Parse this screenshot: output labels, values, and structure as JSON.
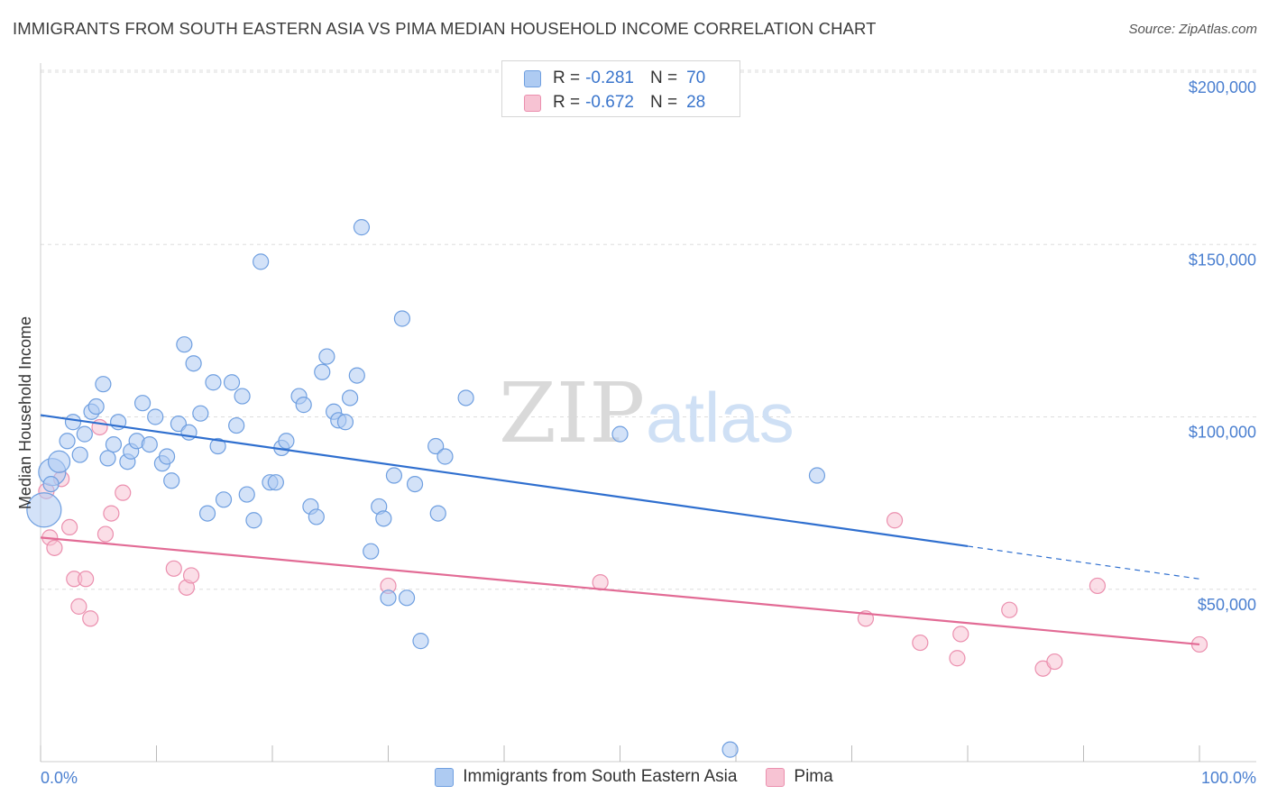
{
  "header": {
    "title": "IMMIGRANTS FROM SOUTH EASTERN ASIA VS PIMA MEDIAN HOUSEHOLD INCOME CORRELATION CHART",
    "source": "Source: ZipAtlas.com"
  },
  "watermark": {
    "zip": "ZIP",
    "atlas": "atlas"
  },
  "legend": {
    "series1": {
      "r_label": "R =",
      "r_value": "-0.281",
      "n_label": "N =",
      "n_value": "70"
    },
    "series2": {
      "r_label": "R =",
      "r_value": "-0.672",
      "n_label": "N =",
      "n_value": "28"
    }
  },
  "colors": {
    "blue_fill": "#aecbf2",
    "blue_stroke": "#6f9fe0",
    "blue_line": "#2f6fcf",
    "pink_fill": "#f7c3d3",
    "pink_stroke": "#eb8fae",
    "pink_line": "#e26b95",
    "tick_text": "#4a7fd0",
    "grid": "#dddddd"
  },
  "chart_data": {
    "type": "scatter",
    "title": "IMMIGRANTS FROM SOUTH EASTERN ASIA VS PIMA MEDIAN HOUSEHOLD INCOME CORRELATION CHART",
    "xlabel": "",
    "ylabel": "Median Household Income",
    "xlim": [
      0,
      100
    ],
    "ylim": [
      0,
      210000
    ],
    "x_tick_labels": [
      "0.0%",
      "100.0%"
    ],
    "y_ticks": [
      50000,
      100000,
      150000,
      200000
    ],
    "y_tick_labels": [
      "$50,000",
      "$100,000",
      "$150,000",
      "$200,000"
    ],
    "series": [
      {
        "name": "Immigrants from South Eastern Asia",
        "color": "#6f9fe0",
        "trend": {
          "x0": 0,
          "y0": 100500,
          "x1": 80,
          "y1": 62500,
          "dash_to_x": 100,
          "dash_to_y": 53000
        },
        "points": [
          {
            "x": 0.3,
            "y": 73000,
            "s": "xl"
          },
          {
            "x": 1.0,
            "y": 84000,
            "s": "l"
          },
          {
            "x": 1.6,
            "y": 87000,
            "s": "m"
          },
          {
            "x": 2.3,
            "y": 93000,
            "s": "s"
          },
          {
            "x": 2.8,
            "y": 98500,
            "s": "s"
          },
          {
            "x": 3.4,
            "y": 89000,
            "s": "s"
          },
          {
            "x": 3.8,
            "y": 95000,
            "s": "s"
          },
          {
            "x": 4.4,
            "y": 101500,
            "s": "s"
          },
          {
            "x": 4.8,
            "y": 103000,
            "s": "s"
          },
          {
            "x": 5.4,
            "y": 109500,
            "s": "s"
          },
          {
            "x": 5.8,
            "y": 88000,
            "s": "s"
          },
          {
            "x": 6.3,
            "y": 92000,
            "s": "s"
          },
          {
            "x": 6.7,
            "y": 98500,
            "s": "s"
          },
          {
            "x": 7.5,
            "y": 87000,
            "s": "s"
          },
          {
            "x": 7.8,
            "y": 90000,
            "s": "s"
          },
          {
            "x": 8.3,
            "y": 93000,
            "s": "s"
          },
          {
            "x": 8.8,
            "y": 104000,
            "s": "s"
          },
          {
            "x": 9.4,
            "y": 92000,
            "s": "s"
          },
          {
            "x": 9.9,
            "y": 100000,
            "s": "s"
          },
          {
            "x": 10.5,
            "y": 86500,
            "s": "s"
          },
          {
            "x": 10.9,
            "y": 88500,
            "s": "s"
          },
          {
            "x": 11.3,
            "y": 81500,
            "s": "s"
          },
          {
            "x": 11.9,
            "y": 98000,
            "s": "s"
          },
          {
            "x": 12.4,
            "y": 121000,
            "s": "s"
          },
          {
            "x": 12.8,
            "y": 95500,
            "s": "s"
          },
          {
            "x": 13.2,
            "y": 115500,
            "s": "s"
          },
          {
            "x": 13.8,
            "y": 101000,
            "s": "s"
          },
          {
            "x": 14.4,
            "y": 72000,
            "s": "s"
          },
          {
            "x": 14.9,
            "y": 110000,
            "s": "s"
          },
          {
            "x": 15.3,
            "y": 91500,
            "s": "s"
          },
          {
            "x": 15.8,
            "y": 76000,
            "s": "s"
          },
          {
            "x": 16.5,
            "y": 110000,
            "s": "s"
          },
          {
            "x": 16.9,
            "y": 97500,
            "s": "s"
          },
          {
            "x": 17.4,
            "y": 106000,
            "s": "s"
          },
          {
            "x": 17.8,
            "y": 77500,
            "s": "s"
          },
          {
            "x": 18.4,
            "y": 70000,
            "s": "s"
          },
          {
            "x": 19.0,
            "y": 145000,
            "s": "s"
          },
          {
            "x": 19.8,
            "y": 81000,
            "s": "s"
          },
          {
            "x": 20.3,
            "y": 81000,
            "s": "s"
          },
          {
            "x": 20.8,
            "y": 91000,
            "s": "s"
          },
          {
            "x": 21.2,
            "y": 93000,
            "s": "s"
          },
          {
            "x": 22.3,
            "y": 106000,
            "s": "s"
          },
          {
            "x": 22.7,
            "y": 103500,
            "s": "s"
          },
          {
            "x": 23.3,
            "y": 74000,
            "s": "s"
          },
          {
            "x": 23.8,
            "y": 71000,
            "s": "s"
          },
          {
            "x": 24.3,
            "y": 113000,
            "s": "s"
          },
          {
            "x": 24.7,
            "y": 117500,
            "s": "s"
          },
          {
            "x": 25.3,
            "y": 101500,
            "s": "s"
          },
          {
            "x": 25.7,
            "y": 99000,
            "s": "s"
          },
          {
            "x": 26.3,
            "y": 98500,
            "s": "s"
          },
          {
            "x": 26.7,
            "y": 105500,
            "s": "s"
          },
          {
            "x": 27.3,
            "y": 112000,
            "s": "s"
          },
          {
            "x": 27.7,
            "y": 155000,
            "s": "s"
          },
          {
            "x": 28.5,
            "y": 61000,
            "s": "s"
          },
          {
            "x": 29.2,
            "y": 74000,
            "s": "s"
          },
          {
            "x": 29.6,
            "y": 70500,
            "s": "s"
          },
          {
            "x": 30.0,
            "y": 47500,
            "s": "s"
          },
          {
            "x": 30.5,
            "y": 83000,
            "s": "s"
          },
          {
            "x": 31.2,
            "y": 128500,
            "s": "s"
          },
          {
            "x": 31.6,
            "y": 47500,
            "s": "s"
          },
          {
            "x": 32.3,
            "y": 80500,
            "s": "s"
          },
          {
            "x": 32.8,
            "y": 35000,
            "s": "s"
          },
          {
            "x": 34.1,
            "y": 91500,
            "s": "s"
          },
          {
            "x": 34.3,
            "y": 72000,
            "s": "s"
          },
          {
            "x": 34.9,
            "y": 88500,
            "s": "s"
          },
          {
            "x": 36.7,
            "y": 105500,
            "s": "s"
          },
          {
            "x": 50.0,
            "y": 95000,
            "s": "s"
          },
          {
            "x": 59.5,
            "y": 3500,
            "s": "s"
          },
          {
            "x": 67.0,
            "y": 83000,
            "s": "s"
          },
          {
            "x": 0.9,
            "y": 80500,
            "s": "s"
          }
        ]
      },
      {
        "name": "Pima",
        "color": "#eb8fae",
        "trend": {
          "x0": 0,
          "y0": 65000,
          "x1": 100,
          "y1": 34000
        },
        "points": [
          {
            "x": 0.5,
            "y": 78500,
            "s": "s"
          },
          {
            "x": 0.8,
            "y": 65000,
            "s": "s"
          },
          {
            "x": 1.2,
            "y": 62000,
            "s": "s"
          },
          {
            "x": 1.8,
            "y": 82000,
            "s": "s"
          },
          {
            "x": 2.5,
            "y": 68000,
            "s": "s"
          },
          {
            "x": 2.9,
            "y": 53000,
            "s": "s"
          },
          {
            "x": 3.3,
            "y": 45000,
            "s": "s"
          },
          {
            "x": 3.9,
            "y": 53000,
            "s": "s"
          },
          {
            "x": 4.3,
            "y": 41500,
            "s": "s"
          },
          {
            "x": 5.1,
            "y": 97000,
            "s": "s"
          },
          {
            "x": 5.6,
            "y": 66000,
            "s": "s"
          },
          {
            "x": 6.1,
            "y": 72000,
            "s": "s"
          },
          {
            "x": 7.1,
            "y": 78000,
            "s": "s"
          },
          {
            "x": 11.5,
            "y": 56000,
            "s": "s"
          },
          {
            "x": 12.6,
            "y": 50500,
            "s": "s"
          },
          {
            "x": 13.0,
            "y": 54000,
            "s": "s"
          },
          {
            "x": 30.0,
            "y": 51000,
            "s": "s"
          },
          {
            "x": 48.3,
            "y": 52000,
            "s": "s"
          },
          {
            "x": 71.2,
            "y": 41500,
            "s": "s"
          },
          {
            "x": 73.7,
            "y": 70000,
            "s": "s"
          },
          {
            "x": 75.9,
            "y": 34500,
            "s": "s"
          },
          {
            "x": 79.1,
            "y": 30000,
            "s": "s"
          },
          {
            "x": 79.4,
            "y": 37000,
            "s": "s"
          },
          {
            "x": 83.6,
            "y": 44000,
            "s": "s"
          },
          {
            "x": 86.5,
            "y": 27000,
            "s": "s"
          },
          {
            "x": 87.5,
            "y": 29000,
            "s": "s"
          },
          {
            "x": 91.2,
            "y": 51000,
            "s": "s"
          },
          {
            "x": 100.0,
            "y": 34000,
            "s": "s"
          }
        ]
      }
    ]
  }
}
